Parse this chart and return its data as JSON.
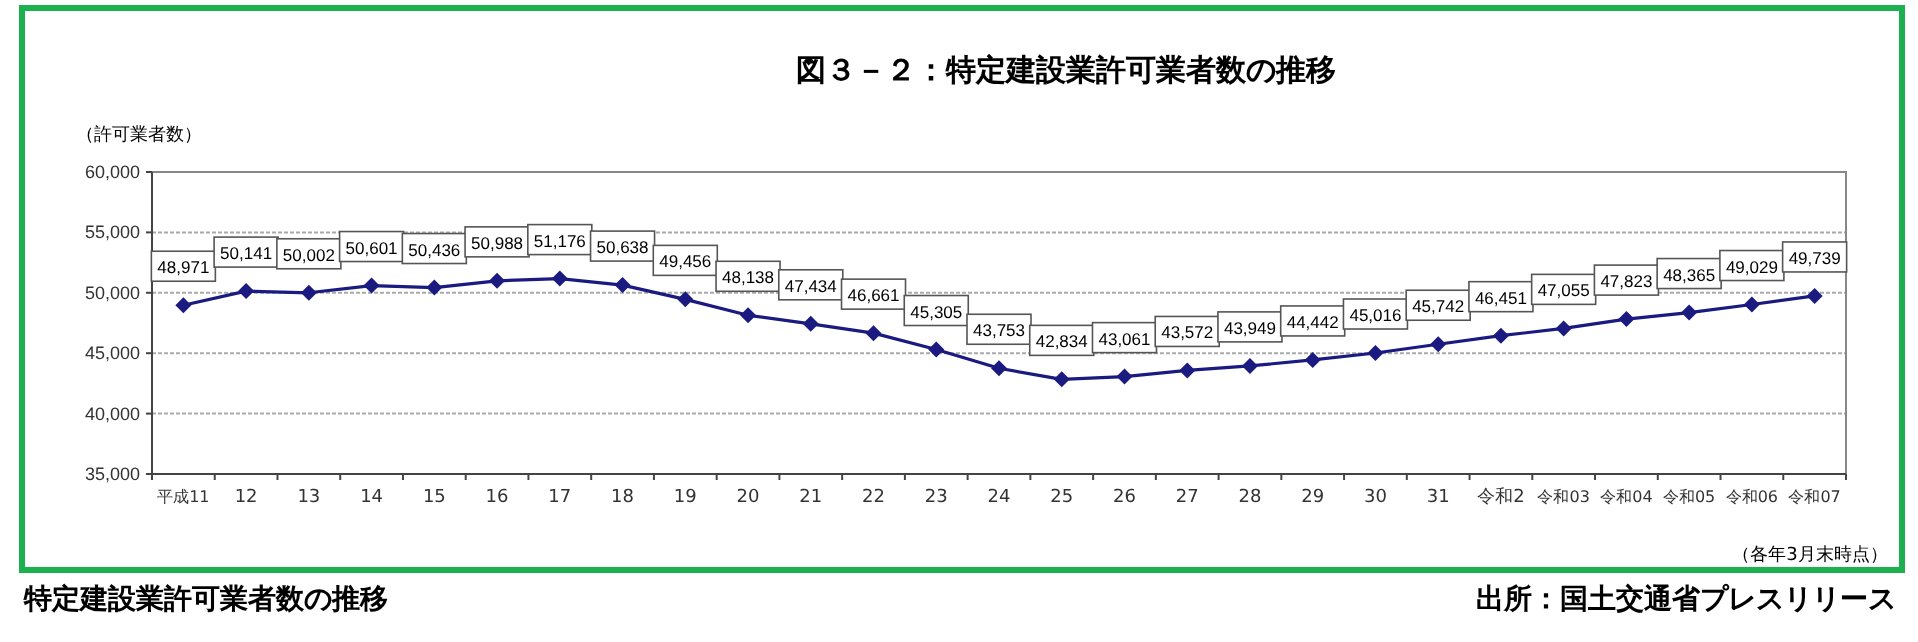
{
  "chart_data": {
    "type": "line",
    "title": "図３－２：特定建設業許可業者数の推移",
    "ylabel": "（許可業者数）",
    "annotations": [
      "（各年3月末時点）",
      "特定建設業許可業者数の推移",
      "出所：国土交通省プレスリリース"
    ],
    "categories": [
      "平成11",
      "12",
      "13",
      "14",
      "15",
      "16",
      "17",
      "18",
      "19",
      "20",
      "21",
      "22",
      "23",
      "24",
      "25",
      "26",
      "27",
      "28",
      "29",
      "30",
      "31",
      "令和2",
      "令和03",
      "令和04",
      "令和05",
      "令和06",
      "令和07"
    ],
    "series": [
      {
        "color": "#1a1a80",
        "values": [
          48971,
          50141,
          50002,
          50601,
          50436,
          50988,
          51176,
          50638,
          49456,
          48138,
          47434,
          46661,
          45305,
          43753,
          42834,
          43061,
          43572,
          43949,
          44442,
          45016,
          45742,
          46451,
          47055,
          47823,
          48365,
          49029,
          49739
        ],
        "value_labels": [
          "48,971",
          "50,141",
          "50,002",
          "50,601",
          "50,436",
          "50,988",
          "51,176",
          "50,638",
          "49,456",
          "48,138",
          "47,434",
          "46,661",
          "45,305",
          "43,753",
          "42,834",
          "43,061",
          "43,572",
          "43,949",
          "44,442",
          "45,016",
          "45,742",
          "46,451",
          "47,055",
          "47,823",
          "48,365",
          "49,029",
          "49,739"
        ]
      }
    ],
    "ylim": [
      35000,
      60000
    ],
    "yticks": [
      {
        "value": 35000,
        "label": "35,000"
      },
      {
        "value": 40000,
        "label": "40,000"
      },
      {
        "value": 45000,
        "label": "45,000"
      },
      {
        "value": 50000,
        "label": "50,000"
      },
      {
        "value": 55000,
        "label": "55,000"
      },
      {
        "value": 60000,
        "label": "60,000"
      }
    ],
    "grid": "y",
    "marker": "diamond",
    "line_style": "solid"
  }
}
